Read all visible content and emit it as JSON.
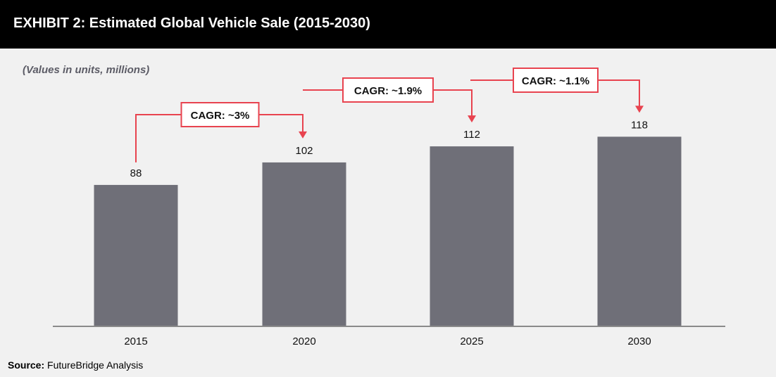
{
  "title": "EXHIBIT 2: Estimated Global Vehicle Sale (2015-2030)",
  "subtitle": "(Values in units, millions)",
  "source": {
    "label": "Source:",
    "text": "FutureBridge Analysis"
  },
  "colors": {
    "bar": "#6f6f78",
    "annotation": "#e8434f",
    "header": "#000000",
    "background": "#f1f1f1"
  },
  "chart_data": {
    "type": "bar",
    "categories": [
      "2015",
      "2020",
      "2025",
      "2030"
    ],
    "values": [
      88,
      102,
      112,
      118
    ],
    "title": "EXHIBIT 2: Estimated Global Vehicle Sale (2015-2030)",
    "ylabel": "(Values in units, millions)",
    "xlabel": "",
    "ylim": [
      0,
      125
    ],
    "grid": false,
    "annotations": [
      {
        "from": "2015",
        "to": "2020",
        "label": "CAGR: ~3%"
      },
      {
        "from": "2020",
        "to": "2025",
        "label": "CAGR: ~1.9%"
      },
      {
        "from": "2025",
        "to": "2030",
        "label": "CAGR: ~1.1%"
      }
    ]
  }
}
